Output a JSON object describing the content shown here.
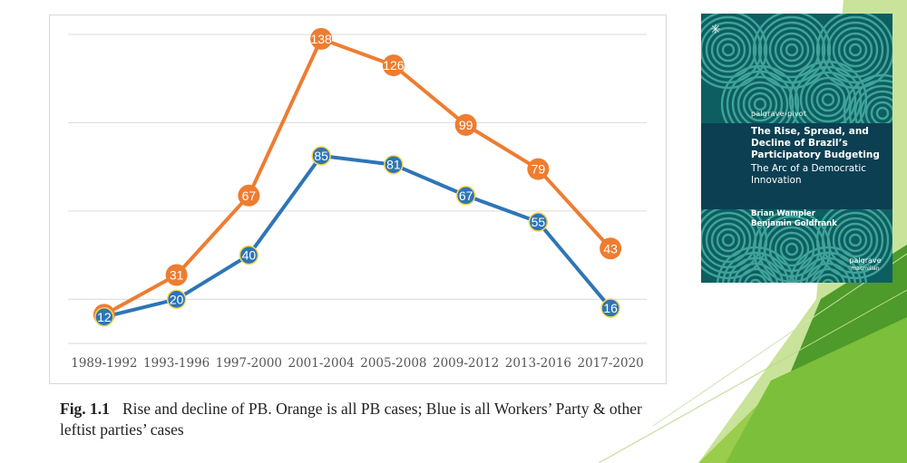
{
  "chart_data": {
    "type": "line",
    "categories": [
      "1989-1992",
      "1993-1996",
      "1997-2000",
      "2001-2004",
      "2005-2008",
      "2009-2012",
      "2013-2016",
      "2017-2020"
    ],
    "series": [
      {
        "values": [
          13,
          31,
          67,
          138,
          126,
          99,
          79,
          43
        ],
        "color": "#ed7d31"
      },
      {
        "values": [
          12,
          20,
          40,
          85,
          81,
          67,
          55,
          16
        ],
        "color": "#2e75b6"
      }
    ],
    "ylim": [
      0,
      140
    ],
    "gridlines": [
      20,
      60,
      100,
      140
    ],
    "grid": true,
    "legend": "none"
  },
  "caption": {
    "fig_label": "Fig. 1.1",
    "text": "Rise and decline of PB. Orange is all PB cases; Blue is all Workers’ Party & other leftist parties’ cases"
  },
  "book_cover": {
    "imprint": "palgrave›pivot",
    "title": "The Rise, Spread, and Decline of Brazil’s Participatory Budgeting",
    "subtitle": "The Arc of a Democratic Innovation",
    "authors": [
      "Brian Wampler",
      "Benjamin Goldfrank"
    ],
    "publisher": "palgrave",
    "publisher_sub": "macmillan",
    "colors": {
      "background": "#0d5e60",
      "band": "#0c3f52",
      "rings": "#3fa39a"
    }
  },
  "decoration_colors": {
    "green_dark": "#4e9a2a",
    "green_light": "#9acd4c",
    "green_pale": "#c9e39a"
  }
}
